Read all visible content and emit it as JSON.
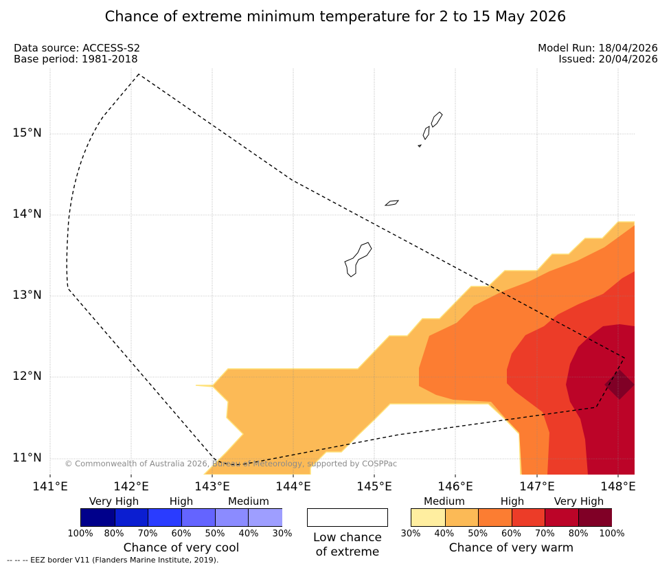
{
  "title": "Chance of extreme minimum temperature for 2 to 15 May 2026",
  "meta": {
    "data_source": "Data source: ACCESS-S2",
    "base_period": "Base period: 1981-2018",
    "model_run": "Model Run: 18/04/2026",
    "issued": "Issued: 20/04/2026"
  },
  "map": {
    "lat_labels": [
      "15°N",
      "14°N",
      "13°N",
      "12°N",
      "11°N"
    ],
    "lon_labels": [
      "141°E",
      "142°E",
      "143°E",
      "144°E",
      "145°E",
      "146°E",
      "147°E",
      "148°E"
    ],
    "copyright": "© Commonwealth of Australia 2026, Bureau of Meteorology, supported by COSPPac"
  },
  "legend": {
    "cool": {
      "title": "Chance of very cool",
      "categories": [
        "Very High",
        "High",
        "Medium"
      ],
      "percents": [
        "100%",
        "80%",
        "70%",
        "60%",
        "50%",
        "40%",
        "30%"
      ],
      "colors": [
        "#00008b",
        "#0b1ed1",
        "#2a3cff",
        "#6464ff",
        "#8b8bff",
        "#9e9eff",
        "#b0b0ff"
      ]
    },
    "low": {
      "title_line1": "Low chance",
      "title_line2": "of extreme"
    },
    "warm": {
      "title": "Chance of very warm",
      "categories": [
        "Medium",
        "High",
        "Very High"
      ],
      "percents": [
        "30%",
        "40%",
        "50%",
        "60%",
        "70%",
        "80%",
        "100%"
      ],
      "colors": [
        "#ffeea0",
        "#fcba56",
        "#fc7d32",
        "#ec3c28",
        "#bc0428",
        "#800026"
      ]
    }
  },
  "eez_note": "--  --  -- EEZ border V11 (Flanders Marine Institute, 2019)."
}
